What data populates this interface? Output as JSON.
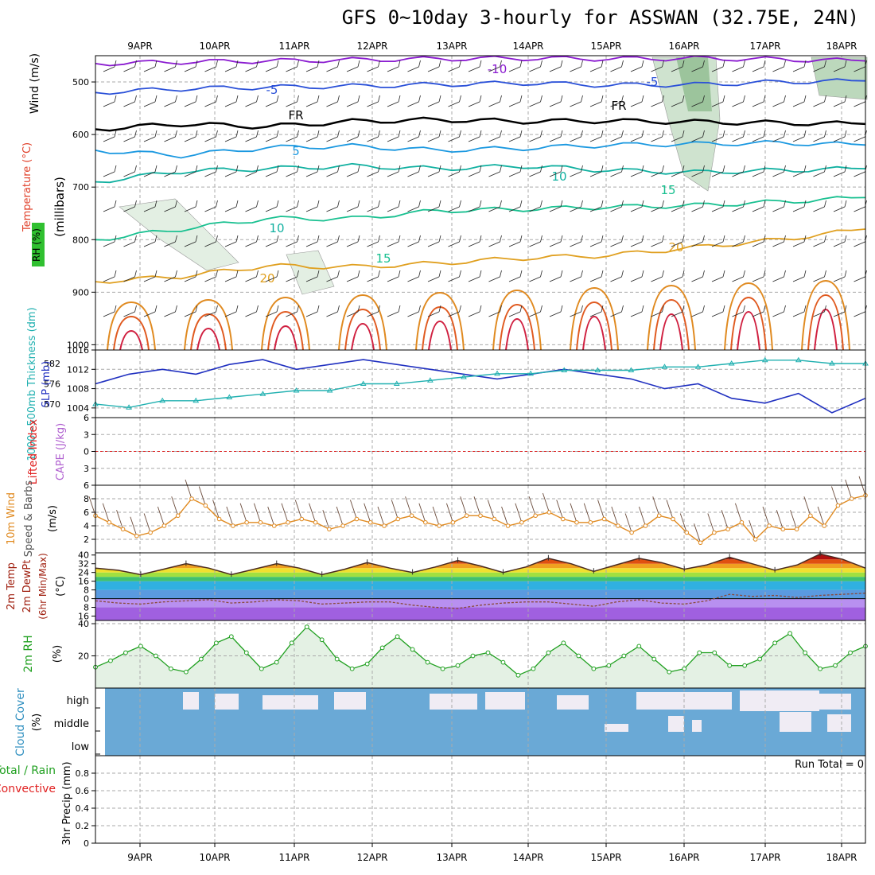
{
  "title": "GFS 0~10day 3-hourly for ASSWAN (32.75E, 24N)",
  "colors": {
    "wind_label": "#000000",
    "temperature_label": "#e0402a",
    "pressure_label": "#2a2ae0",
    "rh_label": "#00aa00",
    "thickness": "#20b0b0",
    "slp": "#2030c0",
    "lifted_index": "#e02020",
    "cape": "#b060d0",
    "wind10m": "#e08a20",
    "rh2m": "#20a020",
    "cloud_fill": "#6aa9d6",
    "cloud_label": "#3090c0",
    "precip_total": "#20a020",
    "precip_conv": "#e02020"
  },
  "chart_data": [
    {
      "id": "upper-air",
      "type": "contour",
      "x_labels": [
        "9APR",
        "10APR",
        "11APR",
        "12APR",
        "13APR",
        "14APR",
        "15APR",
        "16APR",
        "17APR",
        "18APR"
      ],
      "y_ticks": [
        500,
        600,
        700,
        800,
        900,
        1000
      ],
      "y_unit_label": "(millibars)",
      "axis_labels": {
        "wind": "Wind (m/s)",
        "temperature": "Temperature (°C)",
        "rh": "RH (%)"
      },
      "contour_labels": [
        "-10",
        "-5",
        "FR",
        "FR",
        "-5",
        "5",
        "10",
        "15",
        "10",
        "15",
        "20",
        "20"
      ],
      "temperature_isotherms": [
        {
          "label": "-10",
          "values": [
            465,
            462,
            460,
            458,
            456,
            455,
            456,
            455,
            457,
            460
          ]
        },
        {
          "label": "-5",
          "values": [
            520,
            513,
            510,
            508,
            505,
            502,
            506,
            505,
            500,
            498
          ]
        },
        {
          "label": "FR",
          "values": [
            590,
            580,
            585,
            575,
            572,
            575,
            574,
            576,
            578,
            580
          ]
        },
        {
          "label": "5",
          "values": [
            630,
            640,
            625,
            622,
            630,
            626,
            620,
            618,
            616,
            620
          ]
        },
        {
          "label": "10",
          "values": [
            690,
            670,
            665,
            660,
            665,
            660,
            668,
            672,
            668,
            665
          ]
        },
        {
          "label": "15",
          "values": [
            800,
            780,
            760,
            760,
            745,
            742,
            738,
            735,
            728,
            720
          ]
        },
        {
          "label": "20",
          "values": [
            880,
            870,
            850,
            852,
            845,
            835,
            830,
            815,
            800,
            780
          ]
        }
      ]
    },
    {
      "id": "thickness-slp",
      "type": "line",
      "y_label_left": "1000~500mb Thickness (dm)",
      "y_label_right": "SLP (mb)",
      "y_ticks_left": [
        570,
        576,
        582
      ],
      "y_ticks_right": [
        1004,
        1008,
        1012,
        1016
      ],
      "series": [
        {
          "name": "SLP",
          "values": [
            1009,
            1011,
            1012,
            1011,
            1013,
            1014,
            1012,
            1013,
            1014,
            1013,
            1012,
            1011,
            1010,
            1011,
            1012,
            1011,
            1010,
            1008,
            1009,
            1006,
            1005,
            1007,
            1003,
            1006
          ]
        },
        {
          "name": "Thickness",
          "values": [
            570,
            569,
            571,
            571,
            572,
            573,
            574,
            574,
            576,
            576,
            577,
            578,
            579,
            579,
            580,
            580,
            580,
            581,
            581,
            582,
            583,
            583,
            582,
            582
          ]
        }
      ]
    },
    {
      "id": "cape-li",
      "type": "line",
      "y_label_left": "Lifted Index",
      "y_label_right": "CAPE (J/kg)",
      "y_ticks": [
        -6,
        -3,
        0,
        3,
        6
      ],
      "zero_line": 0
    },
    {
      "id": "wind10m",
      "type": "line",
      "y_label": "10m Wind Speed & Barbs",
      "unit": "(m/s)",
      "y_ticks": [
        2,
        4,
        6,
        8
      ],
      "values": [
        5.5,
        4.5,
        3.5,
        2.5,
        3,
        4,
        5.5,
        8,
        7,
        5,
        4,
        4.5,
        4.5,
        4,
        4.5,
        5,
        4.5,
        3.5,
        4,
        5,
        4.5,
        4,
        5,
        5.5,
        4.5,
        4,
        4.5,
        5.5,
        5.5,
        5,
        4,
        4.5,
        5.5,
        6,
        5,
        4.5,
        4.5,
        5,
        4,
        3,
        4,
        5.5,
        5,
        3,
        1.5,
        3,
        3.5,
        4.5,
        2,
        4,
        3.5,
        3.5,
        5.5,
        4,
        7,
        8,
        8.5
      ]
    },
    {
      "id": "temp2m",
      "type": "area",
      "y_label": "2m Temp 2m DewPt (6hr Min/Max)",
      "unit": "(°C)",
      "y_ticks": [
        -16,
        -8,
        0,
        8,
        16,
        24,
        32,
        40
      ],
      "temp": [
        28,
        26,
        22,
        27,
        32,
        28,
        22,
        27,
        32,
        28,
        22,
        27,
        33,
        28,
        24,
        29,
        35,
        30,
        24,
        29,
        37,
        32,
        25,
        31,
        37,
        33,
        27,
        31,
        38,
        32,
        26,
        31,
        41,
        36,
        28
      ],
      "dewpt": [
        -2,
        -4,
        -5,
        -3,
        -2,
        -1,
        -4,
        -3,
        -1,
        -2,
        -5,
        -4,
        -3,
        -3,
        -6,
        -8,
        -9,
        -6,
        -4,
        -3,
        -3,
        -5,
        -7,
        -3,
        -1,
        -4,
        -5,
        -2,
        4,
        2,
        3,
        1,
        3,
        4,
        5
      ]
    },
    {
      "id": "rh2m",
      "type": "area",
      "y_label": "2m RH",
      "unit": "(%)",
      "y_ticks": [
        20,
        40
      ],
      "values": [
        13,
        17,
        22,
        26,
        20,
        12,
        10,
        18,
        28,
        32,
        22,
        12,
        16,
        28,
        38,
        30,
        18,
        12,
        15,
        25,
        32,
        24,
        16,
        12,
        14,
        20,
        22,
        16,
        8,
        12,
        22,
        28,
        20,
        12,
        14,
        20,
        26,
        18,
        10,
        12,
        22,
        22,
        14,
        14,
        18,
        28,
        34,
        22,
        12,
        14,
        22,
        26
      ]
    },
    {
      "id": "cloud",
      "type": "heatmap",
      "y_label": "Cloud Cover",
      "unit": "(%)",
      "levels": [
        "high",
        "middle",
        "low"
      ]
    },
    {
      "id": "precip",
      "type": "bar",
      "y_label_left": "Total / Rain",
      "y_label_left2": "Convective",
      "y_label": "3hr Precip (mm)",
      "y_ticks": [
        "0",
        "0.2",
        "0.4",
        "0.6",
        "0.8"
      ],
      "annotation": "Run Total = 0",
      "values": []
    }
  ]
}
